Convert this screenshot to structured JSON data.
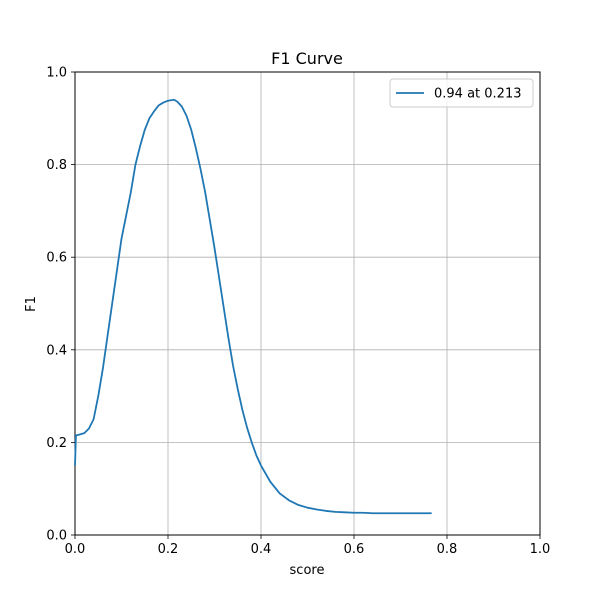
{
  "chart_data": {
    "type": "line",
    "title": "F1 Curve",
    "xlabel": "score",
    "ylabel": "F1",
    "xlim": [
      0,
      1
    ],
    "ylim": [
      0,
      1
    ],
    "xticks": [
      0,
      0.2,
      0.4,
      0.6,
      0.8,
      1
    ],
    "yticks": [
      0,
      0.2,
      0.4,
      0.6,
      0.8,
      1
    ],
    "xtick_labels": [
      "0.0",
      "0.2",
      "0.4",
      "0.6",
      "0.8",
      "1.0"
    ],
    "ytick_labels": [
      "0.0",
      "0.2",
      "0.4",
      "0.6",
      "0.8",
      "1.0"
    ],
    "grid": true,
    "legend_position": "top-right",
    "series": [
      {
        "name": "0.94 at 0.213",
        "color": "#1f77b4",
        "x": [
          0.0,
          0.002,
          0.01,
          0.02,
          0.03,
          0.04,
          0.05,
          0.06,
          0.07,
          0.08,
          0.09,
          0.1,
          0.11,
          0.12,
          0.13,
          0.14,
          0.15,
          0.16,
          0.17,
          0.18,
          0.19,
          0.2,
          0.213,
          0.22,
          0.23,
          0.24,
          0.25,
          0.26,
          0.27,
          0.28,
          0.29,
          0.3,
          0.31,
          0.32,
          0.33,
          0.34,
          0.35,
          0.36,
          0.37,
          0.38,
          0.39,
          0.4,
          0.42,
          0.44,
          0.46,
          0.48,
          0.5,
          0.52,
          0.54,
          0.56,
          0.58,
          0.6,
          0.62,
          0.64,
          0.66,
          0.68,
          0.7,
          0.72,
          0.74,
          0.767
        ],
        "y": [
          0.15,
          0.215,
          0.217,
          0.22,
          0.23,
          0.25,
          0.3,
          0.36,
          0.43,
          0.5,
          0.57,
          0.64,
          0.69,
          0.74,
          0.8,
          0.84,
          0.875,
          0.9,
          0.915,
          0.928,
          0.934,
          0.938,
          0.94,
          0.936,
          0.925,
          0.905,
          0.875,
          0.835,
          0.79,
          0.74,
          0.68,
          0.62,
          0.555,
          0.49,
          0.425,
          0.365,
          0.315,
          0.27,
          0.232,
          0.2,
          0.172,
          0.15,
          0.115,
          0.09,
          0.075,
          0.065,
          0.059,
          0.055,
          0.052,
          0.05,
          0.049,
          0.048,
          0.048,
          0.047,
          0.047,
          0.047,
          0.047,
          0.047,
          0.047,
          0.047
        ]
      }
    ]
  }
}
